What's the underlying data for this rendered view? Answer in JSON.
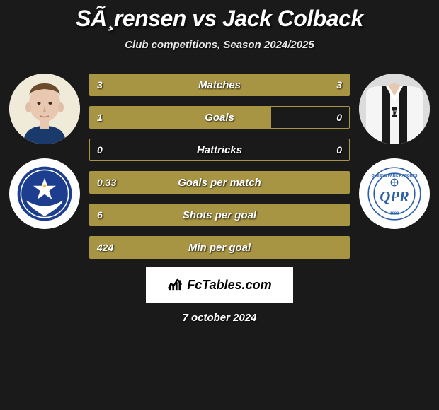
{
  "title": "SÃ¸rensen vs Jack Colback",
  "subtitle": "Club competitions, Season 2024/2025",
  "date": "7 october 2024",
  "branding": "FcTables.com",
  "colors": {
    "background": "#1a1a1a",
    "bar_fill": "#a89544",
    "bar_border": "#a89544",
    "text": "#ffffff"
  },
  "left_crest": {
    "bg": "#ffffff",
    "primary": "#1d3e8f",
    "accent": "#f5c542"
  },
  "right_crest": {
    "bg": "#ffffff",
    "primary": "#2b5fa8"
  },
  "stats": [
    {
      "label": "Matches",
      "left_val": "3",
      "right_val": "3",
      "left_pct": 50,
      "right_pct": 50
    },
    {
      "label": "Goals",
      "left_val": "1",
      "right_val": "0",
      "left_pct": 70,
      "right_pct": 0
    },
    {
      "label": "Hattricks",
      "left_val": "0",
      "right_val": "0",
      "left_pct": 0,
      "right_pct": 0
    },
    {
      "label": "Goals per match",
      "left_val": "0.33",
      "right_val": "",
      "left_pct": 100,
      "right_pct": 0
    },
    {
      "label": "Shots per goal",
      "left_val": "6",
      "right_val": "",
      "left_pct": 100,
      "right_pct": 0
    },
    {
      "label": "Min per goal",
      "left_val": "424",
      "right_val": "",
      "left_pct": 100,
      "right_pct": 0
    }
  ]
}
